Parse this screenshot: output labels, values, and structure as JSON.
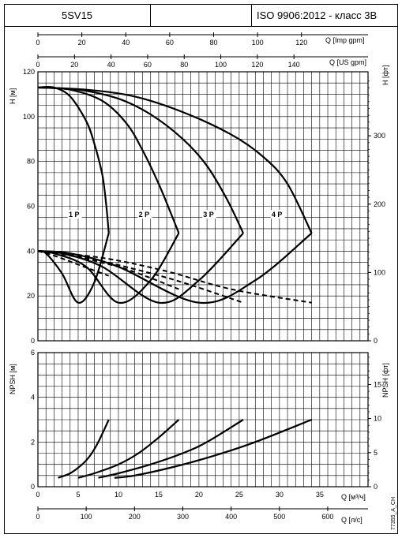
{
  "header": {
    "model": "5SV15",
    "blank": "",
    "standard": "ISO 9906:2012 - класс 3B"
  },
  "axes": {
    "q_imp_label": "Q [Imp gpm]",
    "q_us_label": "Q [US gpm]",
    "h_m_label": "H [м]",
    "h_ft_label": "H [фт]",
    "npsh_m_label": "NPSH [м]",
    "npsh_ft_label": "NPSH [фт]",
    "q_m3h_label": "Q [м³/ч]",
    "q_ls_label": "Q [л/с]",
    "doc_code": "77355_A_CH"
  },
  "chart_data": [
    {
      "type": "line",
      "title": "",
      "xlabel": "Q [м³/ч]",
      "ylabel": "H [м]",
      "xlim": [
        0,
        41
      ],
      "ylim": [
        0,
        120
      ],
      "secondary_y": {
        "label": "H [фт]",
        "ticks": [
          0,
          100,
          200,
          300
        ]
      },
      "secondary_x_top": [
        {
          "label": "Q [Imp gpm]",
          "ticks": [
            0,
            20,
            40,
            60,
            80,
            100,
            120
          ]
        },
        {
          "label": "Q [US gpm]",
          "ticks": [
            0,
            20,
            40,
            60,
            80,
            100,
            120,
            140
          ]
        }
      ],
      "x_ticks": [
        0,
        5,
        10,
        15,
        20,
        25,
        30,
        35
      ],
      "y_ticks": [
        0,
        20,
        40,
        60,
        80,
        100,
        120
      ],
      "series": [
        {
          "name": "1 P",
          "head_curve": [
            [
              0,
              113
            ],
            [
              2,
              113
            ],
            [
              4,
              109
            ],
            [
              6,
              98
            ],
            [
              7,
              88
            ],
            [
              8,
              74
            ],
            [
              8.5,
              60
            ],
            [
              8.8,
              48
            ]
          ],
          "efficiency_curve": [
            [
              0,
              40
            ],
            [
              1,
              39
            ],
            [
              3,
              30
            ],
            [
              5,
              17
            ],
            [
              7,
              26
            ],
            [
              8.8,
              48
            ]
          ],
          "npsh_curve": [
            [
              0,
              40
            ],
            [
              2,
              38
            ],
            [
              5,
              34
            ],
            [
              8.8,
              29
            ]
          ]
        },
        {
          "name": "2 P",
          "head_curve": [
            [
              0,
              113
            ],
            [
              4,
              112
            ],
            [
              8,
              107
            ],
            [
              11,
              97
            ],
            [
              13,
              85
            ],
            [
              15,
              70
            ],
            [
              16.5,
              57
            ],
            [
              17.5,
              48
            ]
          ],
          "efficiency_curve": [
            [
              0,
              40
            ],
            [
              2,
              39
            ],
            [
              6,
              33
            ],
            [
              10,
              17
            ],
            [
              14,
              27
            ],
            [
              17.5,
              48
            ]
          ],
          "npsh_curve": [
            [
              0,
              40
            ],
            [
              4,
              38
            ],
            [
              10,
              33
            ],
            [
              14,
              28
            ],
            [
              17.5,
              23
            ]
          ]
        },
        {
          "name": "3 P",
          "head_curve": [
            [
              0,
              113
            ],
            [
              5,
              112
            ],
            [
              10,
              108
            ],
            [
              14,
              101
            ],
            [
              18,
              90
            ],
            [
              21,
              78
            ],
            [
              23.5,
              63
            ],
            [
              25.5,
              48
            ]
          ],
          "efficiency_curve": [
            [
              0,
              40
            ],
            [
              3,
              39
            ],
            [
              8,
              33
            ],
            [
              15,
              17
            ],
            [
              20,
              27
            ],
            [
              25.5,
              48
            ]
          ],
          "npsh_curve": [
            [
              0,
              40
            ],
            [
              6,
              37
            ],
            [
              12,
              32
            ],
            [
              18,
              26
            ],
            [
              25.5,
              17
            ]
          ]
        },
        {
          "name": "4 P",
          "head_curve": [
            [
              0,
              113
            ],
            [
              6,
              112
            ],
            [
              12,
              109
            ],
            [
              18,
              102
            ],
            [
              24,
              92
            ],
            [
              28,
              82
            ],
            [
              31,
              70
            ],
            [
              34,
              48
            ]
          ],
          "efficiency_curve": [
            [
              0,
              40
            ],
            [
              4,
              39
            ],
            [
              10,
              33
            ],
            [
              20,
              17
            ],
            [
              27,
              27
            ],
            [
              34,
              48
            ]
          ],
          "npsh_curve": [
            [
              0,
              40
            ],
            [
              8,
              37
            ],
            [
              16,
              31
            ],
            [
              24,
              23
            ],
            [
              34,
              17
            ]
          ]
        }
      ]
    },
    {
      "type": "line",
      "title": "",
      "xlabel": "Q [м³/ч]",
      "ylabel": "NPSH [м]",
      "xlim": [
        0,
        41
      ],
      "ylim": [
        0,
        6
      ],
      "secondary_y": {
        "label": "NPSH [фт]",
        "ticks": [
          0,
          5,
          10,
          15
        ]
      },
      "secondary_x_bottom": {
        "label": "Q [л/с]",
        "ticks": [
          0,
          100,
          200,
          300,
          400,
          500,
          600
        ]
      },
      "x_ticks": [
        0,
        5,
        10,
        15,
        20,
        25,
        30,
        35
      ],
      "y_ticks": [
        0,
        2,
        4,
        6
      ],
      "series": [
        {
          "name": "1 P",
          "values": [
            [
              2.5,
              0.4
            ],
            [
              4,
              0.6
            ],
            [
              5.5,
              1
            ],
            [
              6.5,
              1.4
            ],
            [
              7.5,
              2
            ],
            [
              8.8,
              3
            ]
          ]
        },
        {
          "name": "2 P",
          "values": [
            [
              5,
              0.4
            ],
            [
              7,
              0.6
            ],
            [
              10,
              1
            ],
            [
              12.5,
              1.5
            ],
            [
              15,
              2.2
            ],
            [
              17.5,
              3
            ]
          ]
        },
        {
          "name": "3 P",
          "values": [
            [
              7.5,
              0.4
            ],
            [
              10,
              0.6
            ],
            [
              14,
              1
            ],
            [
              18,
              1.5
            ],
            [
              21,
              2
            ],
            [
              25.5,
              3
            ]
          ]
        },
        {
          "name": "4 P",
          "values": [
            [
              9.5,
              0.4
            ],
            [
              12,
              0.5
            ],
            [
              17,
              0.9
            ],
            [
              22,
              1.4
            ],
            [
              27,
              2
            ],
            [
              34,
              3
            ]
          ]
        }
      ]
    }
  ]
}
